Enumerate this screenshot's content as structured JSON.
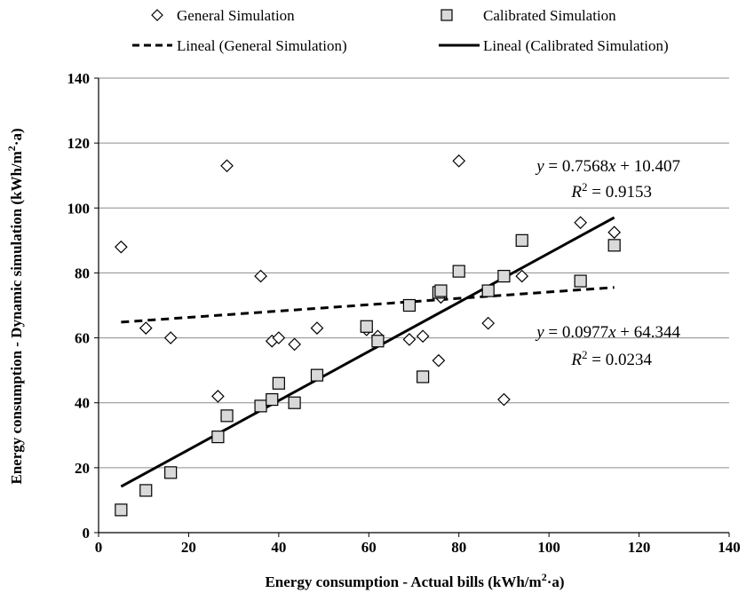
{
  "chart_data": {
    "type": "scatter",
    "xlabel_parts": [
      "Energy consumption - Actual bills (kWh/m",
      "2",
      "·a)"
    ],
    "ylabel_parts": [
      "Energy consumption - Dynamic simulation (kWh/m",
      "2",
      "·a)"
    ],
    "xlim": [
      0,
      140
    ],
    "ylim": [
      0,
      140
    ],
    "xticks": [
      0,
      20,
      40,
      60,
      80,
      100,
      120,
      140
    ],
    "yticks": [
      0,
      20,
      40,
      60,
      80,
      100,
      120,
      140
    ],
    "grid": "horizontal",
    "legend_position": "top",
    "legend": [
      {
        "label": "General Simulation",
        "symbol": "diamond"
      },
      {
        "label": "Calibrated Simulation",
        "symbol": "square"
      },
      {
        "label": "Lineal (General Simulation)",
        "symbol": "dashed-line"
      },
      {
        "label": "Lineal (Calibrated Simulation)",
        "symbol": "solid-line"
      }
    ],
    "series": [
      {
        "name": "General Simulation",
        "marker": "diamond",
        "color": "#ffffff",
        "points": [
          [
            5,
            88
          ],
          [
            10.5,
            63
          ],
          [
            16,
            60
          ],
          [
            26.5,
            42
          ],
          [
            28.5,
            113
          ],
          [
            36,
            79
          ],
          [
            38.5,
            59
          ],
          [
            40,
            60
          ],
          [
            43.5,
            58
          ],
          [
            48.5,
            63
          ],
          [
            59.5,
            62.5
          ],
          [
            62,
            60.5
          ],
          [
            69,
            59.5
          ],
          [
            72,
            60.5
          ],
          [
            75.5,
            53
          ],
          [
            76,
            72.5
          ],
          [
            80,
            114.5
          ],
          [
            86.5,
            64.5
          ],
          [
            90,
            41
          ],
          [
            94,
            79
          ],
          [
            107,
            95.5
          ],
          [
            114.5,
            92.5
          ]
        ]
      },
      {
        "name": "Calibrated Simulation",
        "marker": "square",
        "color": "#d9d9d9",
        "points": [
          [
            5,
            7
          ],
          [
            10.5,
            13
          ],
          [
            16,
            18.5
          ],
          [
            26.5,
            29.5
          ],
          [
            28.5,
            36
          ],
          [
            36,
            39
          ],
          [
            38.5,
            41
          ],
          [
            40,
            46
          ],
          [
            43.5,
            40
          ],
          [
            48.5,
            48.5
          ],
          [
            59.5,
            63.5
          ],
          [
            62,
            59
          ],
          [
            69,
            70
          ],
          [
            72,
            48
          ],
          [
            75.5,
            74
          ],
          [
            76,
            74.5
          ],
          [
            80,
            80.5
          ],
          [
            86.5,
            74.5
          ],
          [
            90,
            79
          ],
          [
            94,
            90
          ],
          [
            107,
            77.5
          ],
          [
            114.5,
            88.5
          ]
        ]
      }
    ],
    "trendlines": [
      {
        "name": "Lineal (General Simulation)",
        "style": "dashed",
        "slope": 0.0977,
        "intercept": 64.344,
        "x_range": [
          5,
          114.5
        ],
        "equation_lhs": "y",
        "equation_rhs": " = 0.0977",
        "equation_tail": " + 64.344",
        "r2_label": "R",
        "r2_value": " = 0.0234"
      },
      {
        "name": "Lineal (Calibrated Simulation)",
        "style": "solid",
        "slope": 0.7568,
        "intercept": 10.407,
        "x_range": [
          5,
          114.5
        ],
        "equation_lhs": "y",
        "equation_rhs": " = 0.7568",
        "equation_tail": " + 10.407",
        "r2_label": "R",
        "r2_value": " = 0.9153"
      }
    ],
    "equation_var": "x",
    "r2_sup": "2"
  }
}
